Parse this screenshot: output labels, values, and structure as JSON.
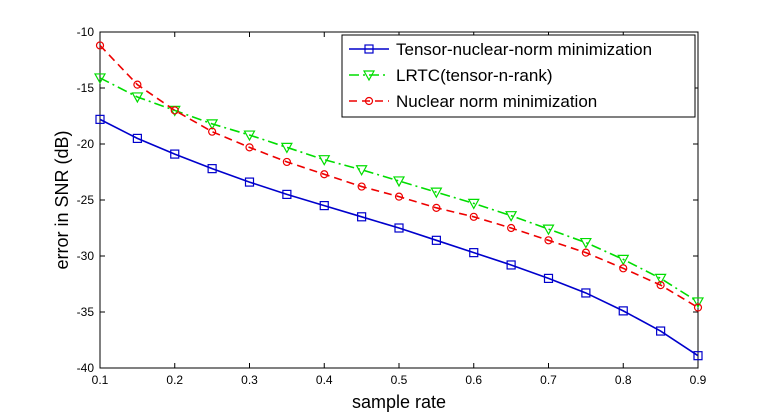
{
  "chart_data": {
    "type": "line",
    "title": "",
    "xlabel": "sample rate",
    "ylabel": "error in SNR (dB)",
    "xlim": [
      0.1,
      0.9
    ],
    "ylim": [
      -40,
      -10
    ],
    "x_ticks": [
      0.1,
      0.2,
      0.3,
      0.4,
      0.5,
      0.6,
      0.7,
      0.8,
      0.9
    ],
    "x_tick_labels": [
      "0.1",
      "0.2",
      "0.3",
      "0.4",
      "0.5",
      "0.6",
      "0.7",
      "0.8",
      "0.9"
    ],
    "y_ticks": [
      -10,
      -15,
      -20,
      -25,
      -30,
      -35,
      -40
    ],
    "y_tick_labels": [
      "-10",
      "-15",
      "-20",
      "-25",
      "-30",
      "-35",
      "-40"
    ],
    "grid": false,
    "legend_position": "top-right",
    "x": [
      0.1,
      0.15,
      0.2,
      0.25,
      0.3,
      0.35,
      0.4,
      0.45,
      0.5,
      0.55,
      0.6,
      0.65,
      0.7,
      0.75,
      0.8,
      0.85,
      0.9
    ],
    "series": [
      {
        "name": "Tensor-nuclear-norm minimization",
        "color": "#0000cc",
        "line": "solid",
        "marker": "square",
        "values": [
          -17.8,
          -19.5,
          -20.9,
          -22.2,
          -23.4,
          -24.5,
          -25.5,
          -26.5,
          -27.5,
          -28.6,
          -29.7,
          -30.8,
          -32.0,
          -33.3,
          -34.9,
          -36.7,
          -38.9
        ]
      },
      {
        "name": "LRTC(tensor-n-rank)",
        "color": "#00dd00",
        "line": "dashdot",
        "marker": "triangle-down",
        "values": [
          -14.1,
          -15.8,
          -17.0,
          -18.2,
          -19.2,
          -20.3,
          -21.4,
          -22.3,
          -23.3,
          -24.3,
          -25.3,
          -26.4,
          -27.6,
          -28.8,
          -30.3,
          -32.0,
          -34.1
        ]
      },
      {
        "name": "Nuclear norm minimization",
        "color": "#ee0000",
        "line": "dashed",
        "marker": "circle",
        "values": [
          -11.2,
          -14.7,
          -17.0,
          -18.9,
          -20.3,
          -21.6,
          -22.7,
          -23.8,
          -24.7,
          -25.7,
          -26.5,
          -27.5,
          -28.6,
          -29.7,
          -31.1,
          -32.6,
          -34.6
        ]
      }
    ]
  }
}
